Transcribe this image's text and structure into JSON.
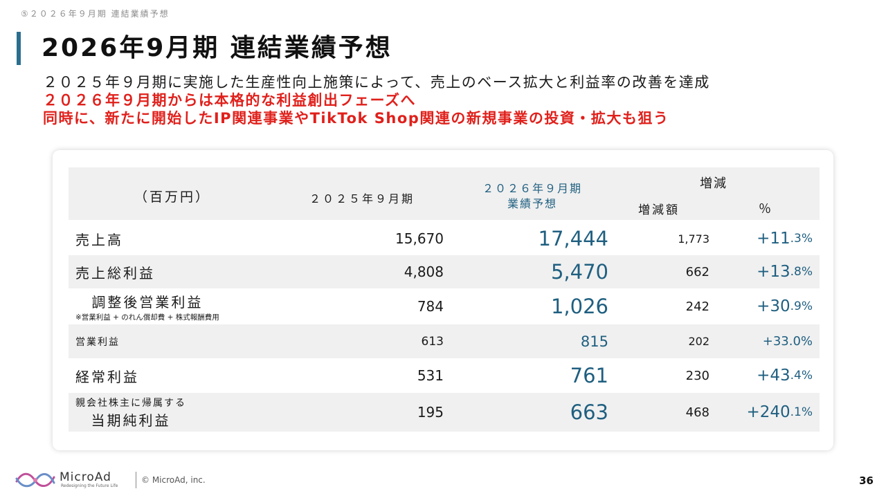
{
  "header": {
    "breadcrumb": "⑤２０２６年９月期 連結業績予想",
    "title": "2026年9月期 連結業績予想"
  },
  "lead": {
    "line1": "２０２５年９月期に実施した生産性向上施策によって、売上のベース拡大と利益率の改善を達成",
    "line2": "２０２６年９月期からは本格的な利益創出フェーズへ",
    "line3": "同時に、新たに開始したIP関連事業やTikTok Shop関連の新規事業の投資・拡大も狙う"
  },
  "table": {
    "header": {
      "unit": "（百万円）",
      "fy2025": "２０２５年９月期",
      "fy2026_line1": "２０２６年９月期",
      "fy2026_line2": "業績予想",
      "change": "増減",
      "change_amount": "増減額",
      "change_pct": "％"
    },
    "rows": [
      {
        "label": "売上高",
        "fy2025": "15,670",
        "fy2026": "17,444",
        "diff": "1,773",
        "pct_main": "+11",
        "pct_frac": ".3%"
      },
      {
        "label": "売上総利益",
        "fy2025": "4,808",
        "fy2026": "5,470",
        "diff": "662",
        "pct_main": "+13",
        "pct_frac": ".8%"
      },
      {
        "label": "調整後営業利益",
        "note": "※営業利益 + のれん償却費 + 株式報酬費用",
        "fy2025": "784",
        "fy2026": "1,026",
        "diff": "242",
        "pct_main": "+30",
        "pct_frac": ".9%"
      },
      {
        "label": "営業利益",
        "fy2025": "613",
        "fy2026": "815",
        "diff": "202",
        "pct": "+33.0%"
      },
      {
        "label": "経常利益",
        "fy2025": "531",
        "fy2026": "761",
        "diff": "230",
        "pct_main": "+43",
        "pct_frac": ".4%"
      },
      {
        "label_line1": "親会社株主に帰属する",
        "label_line2": "当期純利益",
        "fy2025": "195",
        "fy2026": "663",
        "diff": "468",
        "pct_main": "+240",
        "pct_frac": ".1%"
      }
    ]
  },
  "footer": {
    "brand": "MicroAd",
    "tagline": "Redesigning the Future Life",
    "copyright": "© MicroAd, inc.",
    "page_number": "36"
  },
  "colors": {
    "accent": "#2a6f8e",
    "forecast_text": "#1f5f80",
    "emphasis_red": "#e0201b",
    "row_shade": "#f0f0f0"
  }
}
